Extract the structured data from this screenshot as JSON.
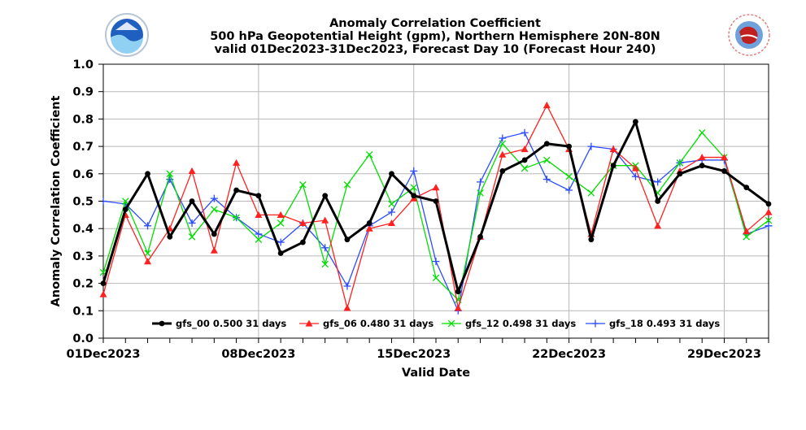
{
  "chart_data": {
    "type": "line",
    "title_lines": [
      "Anomaly Correlation Coefficient",
      "500 hPa Geopotential Height (gpm), Northern Hemisphere 20N-80N",
      "valid 01Dec2023-31Dec2023, Forecast Day 10 (Forecast Hour 240)"
    ],
    "xlabel": "Valid Date",
    "ylabel": "Anomaly Correlation Coefficient",
    "ylim": [
      0.0,
      1.0
    ],
    "xlim": [
      1,
      31
    ],
    "yticks": [
      "0.0",
      "0.1",
      "0.2",
      "0.3",
      "0.4",
      "0.5",
      "0.6",
      "0.7",
      "0.8",
      "0.9",
      "1.0"
    ],
    "xticks": [
      {
        "day": 1,
        "label": "01Dec2023"
      },
      {
        "day": 8,
        "label": "08Dec2023"
      },
      {
        "day": 15,
        "label": "15Dec2023"
      },
      {
        "day": 22,
        "label": "22Dec2023"
      },
      {
        "day": 29,
        "label": "29Dec2023"
      }
    ],
    "grid": true,
    "legend_position": "bottom-center",
    "x_days": [
      1,
      2,
      3,
      4,
      5,
      6,
      7,
      8,
      9,
      10,
      11,
      12,
      13,
      14,
      15,
      16,
      17,
      18,
      19,
      20,
      21,
      22,
      23,
      24,
      25,
      26,
      27,
      28,
      29,
      30,
      31
    ],
    "series": [
      {
        "name": "gfs_00",
        "legend": "gfs_00 0.500 31 days",
        "color": "#000000",
        "marker": "dot",
        "width": 3,
        "values": [
          0.2,
          0.47,
          0.6,
          0.37,
          0.5,
          0.38,
          0.54,
          0.52,
          0.31,
          0.35,
          0.52,
          0.36,
          0.42,
          0.6,
          0.52,
          0.5,
          0.17,
          0.37,
          0.61,
          0.65,
          0.71,
          0.7,
          0.36,
          0.63,
          0.79,
          0.5,
          0.6,
          0.63,
          0.61,
          0.55,
          0.49
        ]
      },
      {
        "name": "gfs_06",
        "legend": "gfs_06 0.480 31 days",
        "color": "#ff2020",
        "marker": "triangle",
        "width": 1.3,
        "values": [
          0.16,
          0.45,
          0.28,
          0.4,
          0.61,
          0.32,
          0.64,
          0.45,
          0.45,
          0.42,
          0.43,
          0.11,
          0.4,
          0.42,
          0.51,
          0.55,
          0.11,
          0.37,
          0.67,
          0.69,
          0.85,
          0.69,
          0.38,
          0.69,
          0.62,
          0.41,
          0.61,
          0.66,
          0.66,
          0.39,
          0.46
        ]
      },
      {
        "name": "gfs_12",
        "legend": "gfs_12 0.498 31 days",
        "color": "#00dd00",
        "marker": "x",
        "width": 1.3,
        "values": [
          0.24,
          0.5,
          0.31,
          0.6,
          0.37,
          0.47,
          0.44,
          0.36,
          0.42,
          0.56,
          0.27,
          0.56,
          0.67,
          0.49,
          0.55,
          0.22,
          0.14,
          0.53,
          0.71,
          0.62,
          0.65,
          0.59,
          0.53,
          0.63,
          0.63,
          0.53,
          0.64,
          0.75,
          0.66,
          0.37,
          0.43
        ]
      },
      {
        "name": "gfs_18",
        "legend": "gfs_18 0.493 31 days",
        "color": "#2b4cff",
        "marker": "plus",
        "width": 1.3,
        "values": [
          0.5,
          0.49,
          0.41,
          0.58,
          0.42,
          0.51,
          0.44,
          0.38,
          0.35,
          0.42,
          0.33,
          0.19,
          0.41,
          0.46,
          0.61,
          0.28,
          0.1,
          0.57,
          0.73,
          0.75,
          0.58,
          0.54,
          0.7,
          0.69,
          0.59,
          0.57,
          0.64,
          0.65,
          0.65,
          0.38,
          0.41
        ]
      }
    ]
  }
}
